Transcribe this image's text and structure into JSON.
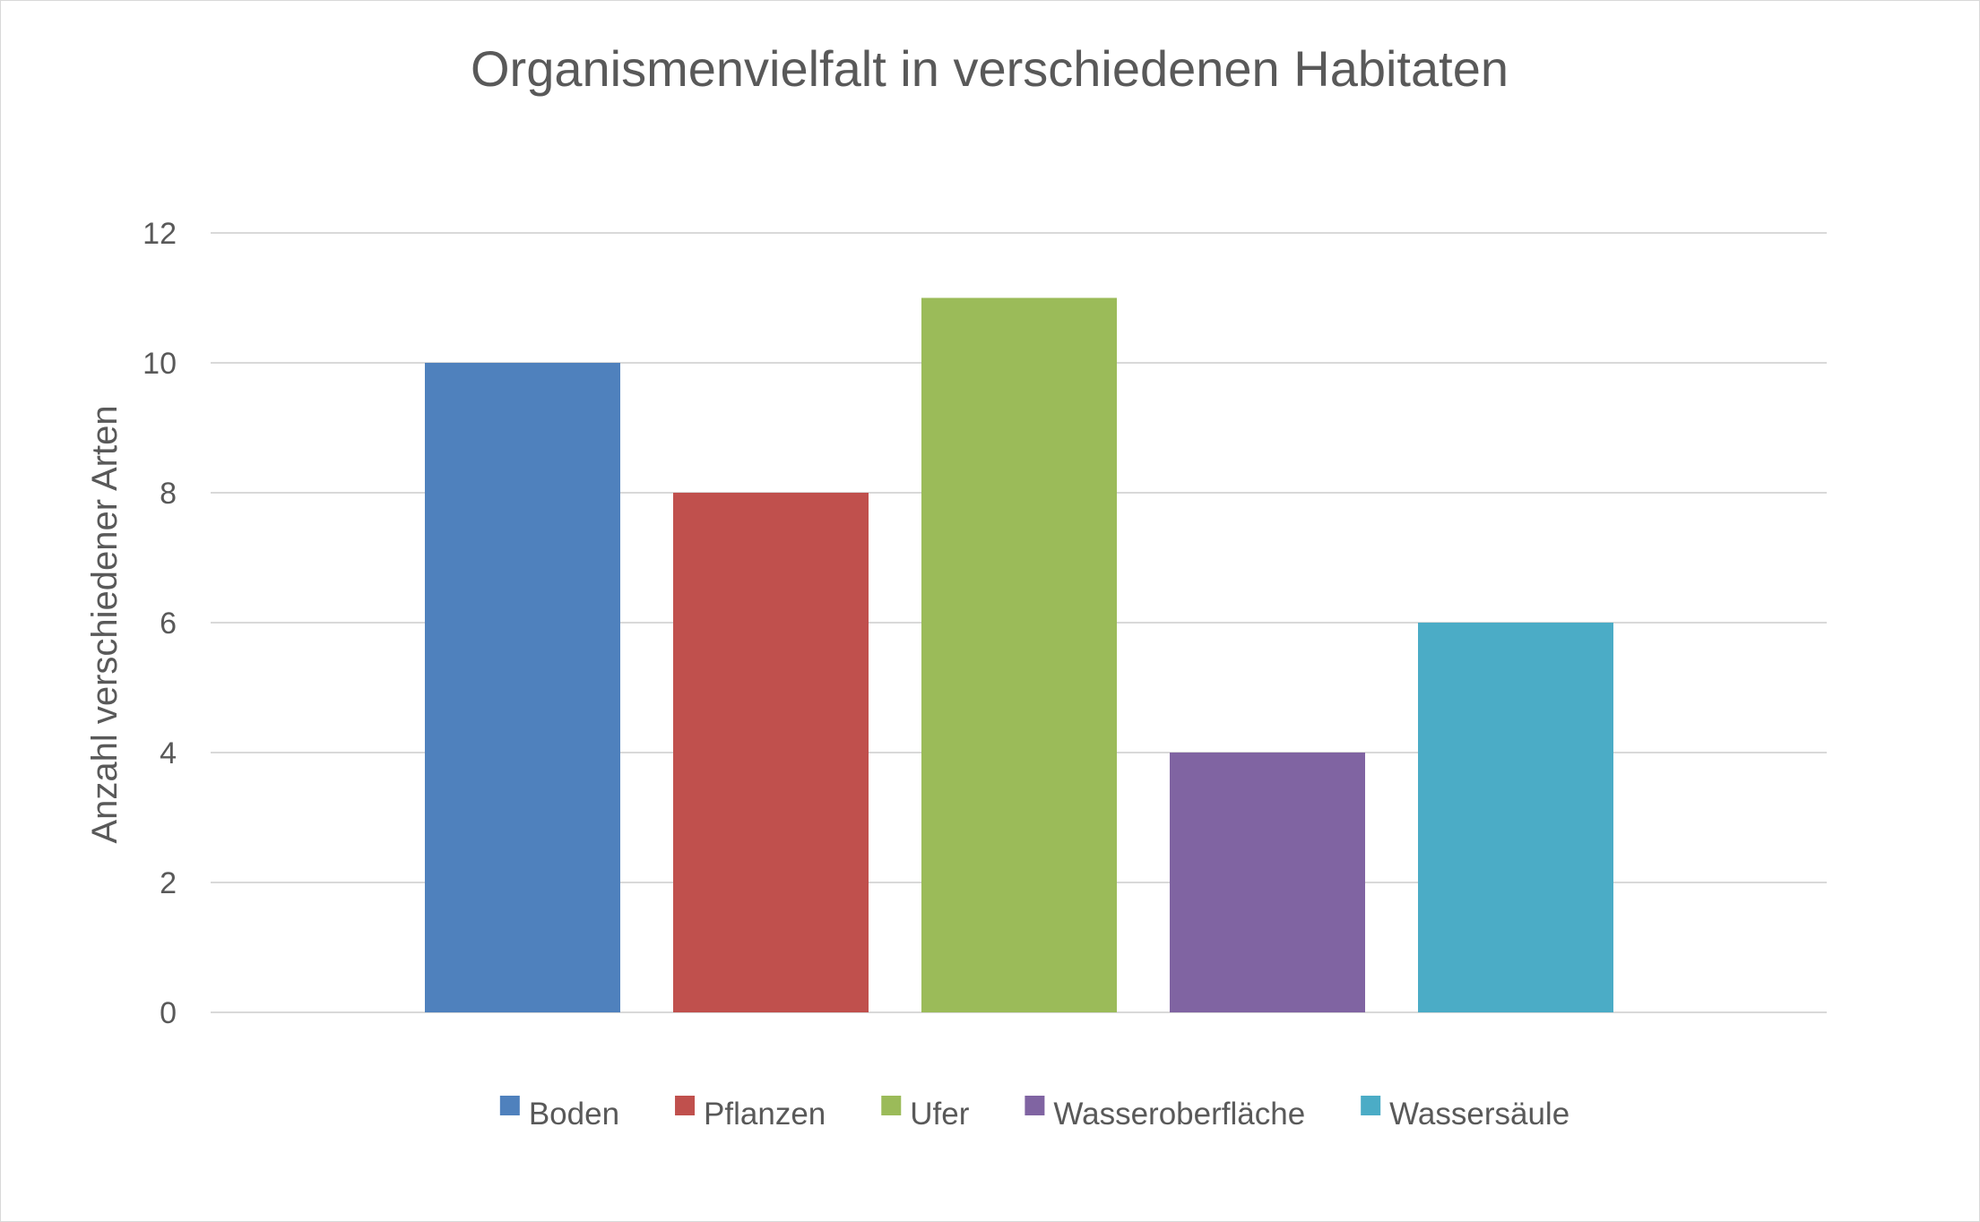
{
  "chart_data": {
    "type": "bar",
    "title": "Organismenvielfalt in verschiedenen Habitaten",
    "ylabel": "Anzahl verschiedener Arten",
    "xlabel": "",
    "ylim": [
      0,
      12
    ],
    "yticks": [
      0,
      2,
      4,
      6,
      8,
      10,
      12
    ],
    "grid": true,
    "legend_position": "bottom",
    "series": [
      {
        "name": "Boden",
        "value": 10,
        "color": "#4f81bd"
      },
      {
        "name": "Pflanzen",
        "value": 8,
        "color": "#c0504d"
      },
      {
        "name": "Ufer",
        "value": 11,
        "color": "#9bbb59"
      },
      {
        "name": "Wasseroberfläche",
        "value": 4,
        "color": "#8064a2"
      },
      {
        "name": "Wassersäule",
        "value": 6,
        "color": "#4bacc6"
      }
    ]
  }
}
